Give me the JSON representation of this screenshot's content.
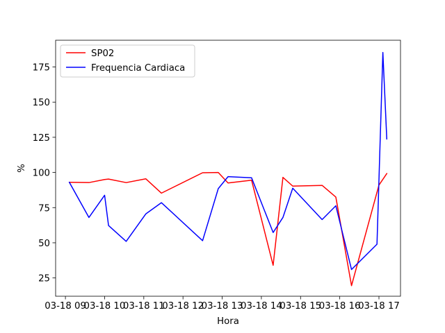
{
  "chart_data": {
    "type": "line",
    "xlabel": "Hora",
    "ylabel": "%",
    "x_ticks": [
      {
        "value": 9,
        "label": "03-18 09"
      },
      {
        "value": 10,
        "label": "03-18 10"
      },
      {
        "value": 11,
        "label": "03-18 11"
      },
      {
        "value": 12,
        "label": "03-18 12"
      },
      {
        "value": 13,
        "label": "03-18 13"
      },
      {
        "value": 14,
        "label": "03-18 14"
      },
      {
        "value": 15,
        "label": "03-18 15"
      },
      {
        "value": 16,
        "label": "03-18 16"
      },
      {
        "value": 17,
        "label": "03-18 17"
      }
    ],
    "y_ticks": [
      25,
      50,
      75,
      100,
      125,
      150,
      175
    ],
    "xlim": [
      8.75,
      17.55
    ],
    "ylim": [
      12,
      194
    ],
    "legend_position": "top-left",
    "series": [
      {
        "name": "SP02",
        "color": "#ff0000",
        "points": [
          [
            9.1,
            93
          ],
          [
            9.6,
            92.8
          ],
          [
            10.0,
            95
          ],
          [
            10.1,
            95.3
          ],
          [
            10.55,
            92.8
          ],
          [
            11.05,
            95.5
          ],
          [
            11.45,
            85.3
          ],
          [
            12.5,
            99.8
          ],
          [
            12.9,
            100
          ],
          [
            13.15,
            92.5
          ],
          [
            13.75,
            94.5
          ],
          [
            14.3,
            34
          ],
          [
            14.55,
            96.5
          ],
          [
            14.8,
            90.3
          ],
          [
            15.55,
            90.8
          ],
          [
            15.9,
            82.5
          ],
          [
            16.3,
            19.5
          ],
          [
            17.0,
            91
          ],
          [
            17.2,
            99.2
          ]
        ]
      },
      {
        "name": "Frequencia Cardiaca",
        "color": "#0000ff",
        "points": [
          [
            9.1,
            93
          ],
          [
            9.6,
            68
          ],
          [
            10.0,
            83.8
          ],
          [
            10.1,
            62.3
          ],
          [
            10.55,
            51
          ],
          [
            11.05,
            70.5
          ],
          [
            11.45,
            78.5
          ],
          [
            12.5,
            51.5
          ],
          [
            12.9,
            88.5
          ],
          [
            13.15,
            97
          ],
          [
            13.75,
            96.2
          ],
          [
            14.3,
            57.3
          ],
          [
            14.55,
            68
          ],
          [
            14.8,
            88.8
          ],
          [
            15.55,
            66.5
          ],
          [
            15.9,
            76.3
          ],
          [
            16.3,
            31
          ],
          [
            16.95,
            49
          ],
          [
            17.1,
            185.3
          ],
          [
            17.2,
            123.8
          ]
        ]
      }
    ]
  }
}
